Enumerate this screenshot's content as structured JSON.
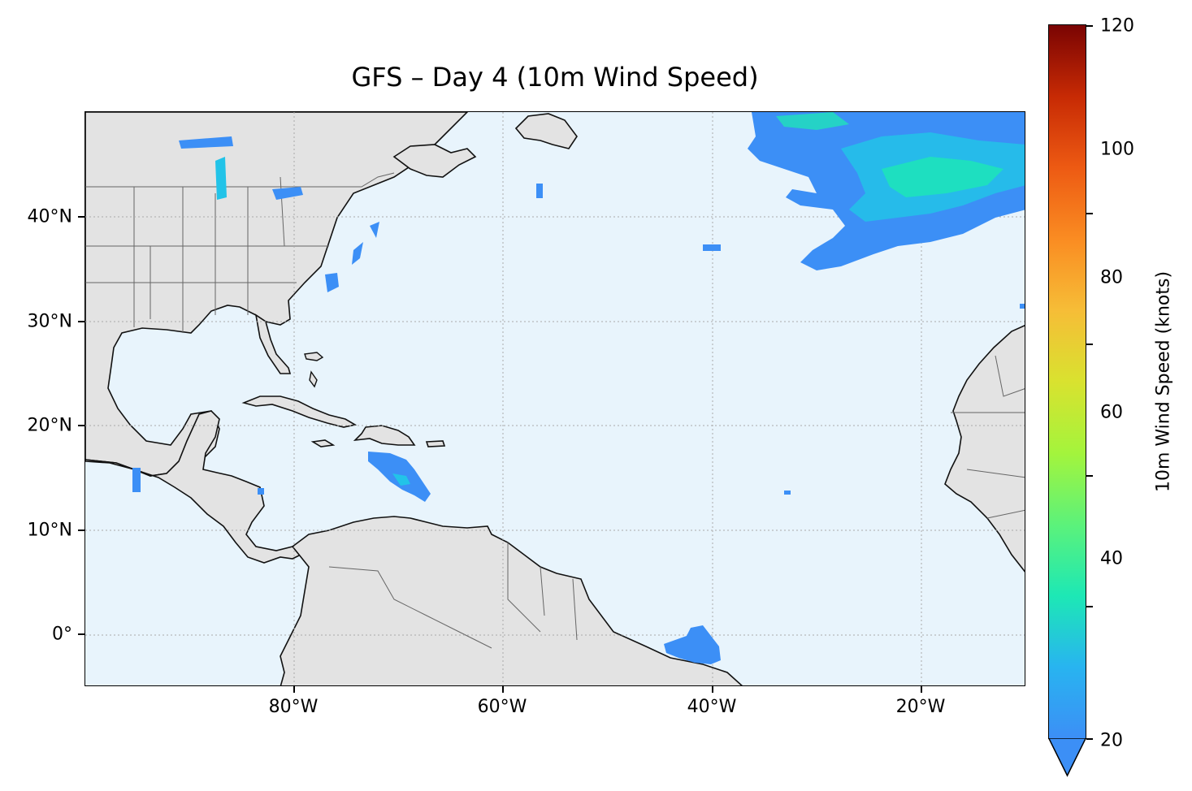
{
  "title": "GFS – Day 4 (10m Wind Speed)",
  "y_ticks": [
    "40°N",
    "30°N",
    "20°N",
    "10°N",
    "0°"
  ],
  "x_ticks": [
    "80°W",
    "60°W",
    "40°W",
    "20°W"
  ],
  "colorbar": {
    "label": "10m Wind Speed (knots)",
    "ticks": [
      "20",
      "40",
      "60",
      "80",
      "100",
      "120"
    ],
    "range": [
      20,
      120
    ],
    "extend": "min",
    "colormap": "turbo"
  },
  "colors": {
    "ocean": "#e8f4fc",
    "land": "#e3e3e3",
    "coastline": "#111111",
    "borders": "#555555",
    "gridlines": "#aaaaaa",
    "wind_low": "#3c8ff6",
    "wind_mid": "#22c3e8",
    "wind_high": "#1de8b5"
  },
  "map": {
    "extent_lon": [
      -100,
      -10
    ],
    "extent_lat": [
      -5,
      50
    ],
    "wind_features": [
      "strong wind region in northeast Atlantic (~35-50°N, 45-10°W)",
      "patch near Puerto Rico",
      "patch off northeast Brazil coast",
      "small patches along US east coast"
    ]
  }
}
